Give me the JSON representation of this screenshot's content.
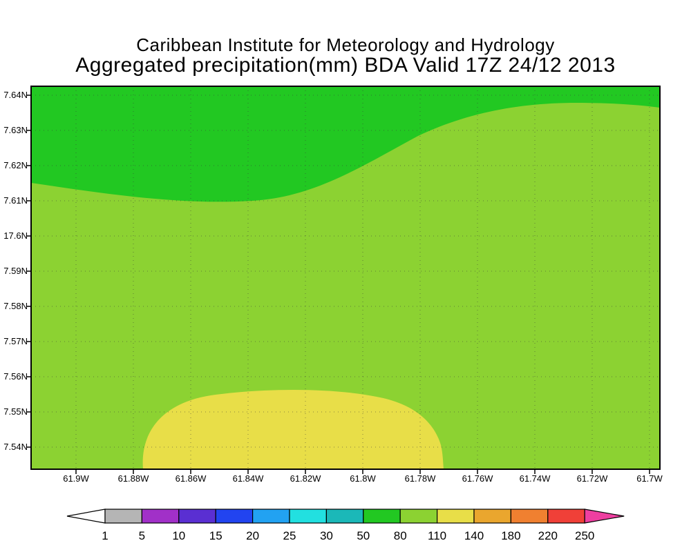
{
  "titles": {
    "line1": "Caribbean Institute for Meteorology and Hydrology",
    "line2": "Aggregated precipitation(mm) BDA Valid 17Z 24/12 2013"
  },
  "axes": {
    "y_ticks": [
      "7.64N",
      "7.63N",
      "7.62N",
      "7.61N",
      "17.6N",
      "7.59N",
      "7.58N",
      "7.57N",
      "7.56N",
      "7.55N",
      "7.54N"
    ],
    "x_ticks": [
      "61.9W",
      "61.88W",
      "61.86W",
      "61.84W",
      "61.82W",
      "61.8W",
      "61.78W",
      "61.76W",
      "61.74W",
      "61.72W",
      "61.7W"
    ]
  },
  "map": {
    "fill_main": "#8cd232",
    "fill_top_band": "#22c822",
    "fill_yellow_blob": "#e8de48",
    "grid_color": "#3a3a3a",
    "frame_color": "#000000"
  },
  "legend": {
    "labels": [
      "1",
      "5",
      "10",
      "15",
      "20",
      "25",
      "30",
      "50",
      "80",
      "110",
      "140",
      "180",
      "220",
      "250"
    ],
    "segment_colors": [
      "#b5b5b5",
      "#a130c8",
      "#5a2fd2",
      "#2244f0",
      "#22a2f2",
      "#22e0e0",
      "#1bb8b8",
      "#22c822",
      "#8cd232",
      "#e8de48",
      "#eaa62e",
      "#f08030",
      "#f04038"
    ],
    "left_arrow_color": "#ffffff",
    "right_arrow_color": "#ee3fa0",
    "outline_color": "#000000"
  },
  "chart_data": {
    "type": "heatmap",
    "title": "Aggregated precipitation(mm) BDA Valid 17Z 24/12 2013",
    "subtitle": "Caribbean Institute for Meteorology and Hydrology",
    "x_tick_labels": [
      "61.9W",
      "61.88W",
      "61.86W",
      "61.84W",
      "61.82W",
      "61.8W",
      "61.78W",
      "61.76W",
      "61.74W",
      "61.72W",
      "61.7W"
    ],
    "y_tick_labels": [
      "7.64N",
      "7.63N",
      "7.62N",
      "7.61N",
      "17.6N",
      "7.59N",
      "7.58N",
      "7.57N",
      "7.56N",
      "7.55N",
      "7.54N"
    ],
    "grid": "dotted",
    "legend_position": "bottom colorbar with triangular under/over arrows",
    "colorbar": {
      "boundaries_mm": [
        1,
        5,
        10,
        15,
        20,
        25,
        30,
        50,
        80,
        110,
        140,
        180,
        220,
        250
      ],
      "segment_colors": [
        "#b5b5b5",
        "#a130c8",
        "#5a2fd2",
        "#2244f0",
        "#22a2f2",
        "#22e0e0",
        "#1bb8b8",
        "#22c822",
        "#8cd232",
        "#e8de48",
        "#eaa62e",
        "#f08030",
        "#f04038"
      ],
      "under_color": "#ffffff",
      "over_color": "#ee3fa0"
    },
    "regions": [
      {
        "value_mm": "50-80",
        "color": "#22c822",
        "area": "dark green band across the entire top of the map; its lower boundary sits near 7.61N on the left half, dips slightly around 61.86W-61.84W, then rises toward about 7.635N on the right side"
      },
      {
        "value_mm": "80-110",
        "color": "#8cd232",
        "area": "light yellow-green filling the majority of the map"
      },
      {
        "value_mm": "110-140",
        "color": "#e8de48",
        "area": "yellow lobe at the bottom center, roughly between 61.88W and 61.78W, south of about 7.555N, touching the bottom edge"
      }
    ]
  }
}
